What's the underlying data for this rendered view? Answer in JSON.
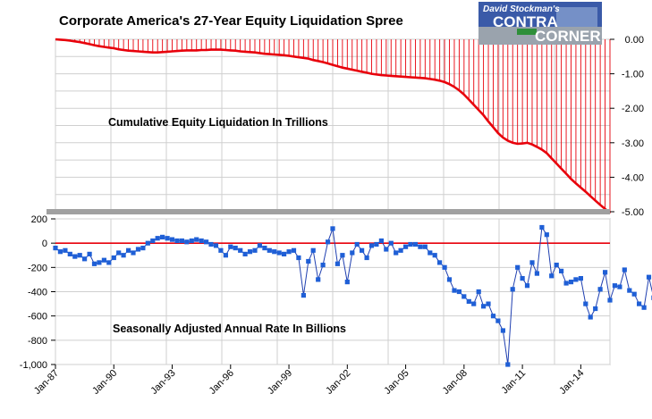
{
  "title": "Corporate America's 27-Year Equity Liquidation Spree",
  "logo": {
    "top_text": "David Stockman's",
    "word1": "CONTRA",
    "word2": "CORNER"
  },
  "colors": {
    "top_series": "#e8000b",
    "bottom_series": "#1f5fd6",
    "zero_line": "#e8000b",
    "grid": "#c8c8c8",
    "divider": "#a0a0a0"
  },
  "chart_data": [
    {
      "type": "area",
      "annotation": "Cumulative Equity Liquidation In Trillions",
      "ylim": [
        -5.0,
        0.0
      ],
      "y_axis_position": "right",
      "y_ticks": [
        "0.00",
        "-1.00",
        "-2.00",
        "-3.00",
        "-4.00",
        "-5.00"
      ],
      "grid": true,
      "x_start_year": 1987.0,
      "x_step_years": 0.25,
      "y": [
        0.0,
        -0.01,
        -0.02,
        -0.04,
        -0.06,
        -0.08,
        -0.11,
        -0.14,
        -0.17,
        -0.2,
        -0.22,
        -0.24,
        -0.26,
        -0.29,
        -0.31,
        -0.33,
        -0.34,
        -0.35,
        -0.36,
        -0.37,
        -0.38,
        -0.38,
        -0.37,
        -0.36,
        -0.35,
        -0.34,
        -0.33,
        -0.32,
        -0.32,
        -0.32,
        -0.31,
        -0.31,
        -0.3,
        -0.3,
        -0.3,
        -0.31,
        -0.32,
        -0.33,
        -0.35,
        -0.36,
        -0.37,
        -0.38,
        -0.4,
        -0.42,
        -0.43,
        -0.44,
        -0.45,
        -0.46,
        -0.48,
        -0.5,
        -0.52,
        -0.54,
        -0.56,
        -0.6,
        -0.63,
        -0.66,
        -0.7,
        -0.74,
        -0.78,
        -0.82,
        -0.85,
        -0.88,
        -0.91,
        -0.94,
        -0.97,
        -1.0,
        -1.02,
        -1.04,
        -1.05,
        -1.06,
        -1.07,
        -1.08,
        -1.09,
        -1.1,
        -1.11,
        -1.12,
        -1.13,
        -1.15,
        -1.17,
        -1.2,
        -1.24,
        -1.3,
        -1.38,
        -1.48,
        -1.6,
        -1.75,
        -1.9,
        -2.05,
        -2.2,
        -2.38,
        -2.55,
        -2.72,
        -2.85,
        -2.94,
        -3.0,
        -3.03,
        -3.02,
        -3.0,
        -3.05,
        -3.12,
        -3.2,
        -3.3,
        -3.45,
        -3.6,
        -3.75,
        -3.9,
        -4.05,
        -4.18,
        -4.3,
        -4.42,
        -4.55,
        -4.68,
        -4.8,
        -4.92,
        -5.05
      ]
    },
    {
      "type": "line",
      "annotation": "Seasonally Adjusted Annual Rate In Billions",
      "ylim": [
        -1000,
        200
      ],
      "y_ticks": [
        "200",
        "0",
        "-200",
        "-400",
        "-600",
        "-800",
        "-1,000"
      ],
      "x_ticks": [
        "Jan-87",
        "Jan-90",
        "Jan-93",
        "Jan-96",
        "Jan-99",
        "Jan-02",
        "Jan-05",
        "Jan-08",
        "Jan-11",
        "Jan-14"
      ],
      "x_start_year": 1987.0,
      "x_step_years": 0.25,
      "y": [
        -40,
        -70,
        -60,
        -90,
        -110,
        -100,
        -130,
        -90,
        -170,
        -160,
        -140,
        -160,
        -120,
        -80,
        -100,
        -60,
        -80,
        -50,
        -40,
        0,
        20,
        40,
        50,
        40,
        30,
        20,
        20,
        10,
        20,
        30,
        20,
        10,
        -10,
        -20,
        -60,
        -100,
        -30,
        -40,
        -60,
        -90,
        -70,
        -60,
        -20,
        -40,
        -60,
        -70,
        -80,
        -90,
        -70,
        -60,
        -120,
        -430,
        -150,
        -60,
        -300,
        -180,
        10,
        120,
        -170,
        -100,
        -320,
        -80,
        -10,
        -60,
        -120,
        -20,
        -10,
        20,
        -50,
        0,
        -80,
        -60,
        -30,
        -10,
        -10,
        -30,
        -30,
        -80,
        -100,
        -160,
        -200,
        -300,
        -390,
        -400,
        -440,
        -480,
        -500,
        -400,
        -520,
        -500,
        -600,
        -640,
        -720,
        -1000,
        -380,
        -200,
        -290,
        -350,
        -160,
        -250,
        130,
        70,
        -270,
        -180,
        -230,
        -330,
        -320,
        -300,
        -290,
        -500,
        -610,
        -540,
        -380,
        -240,
        -470,
        -350,
        -360,
        -220,
        -390,
        -420,
        -500,
        -530,
        -280,
        -450,
        -420
      ]
    }
  ]
}
